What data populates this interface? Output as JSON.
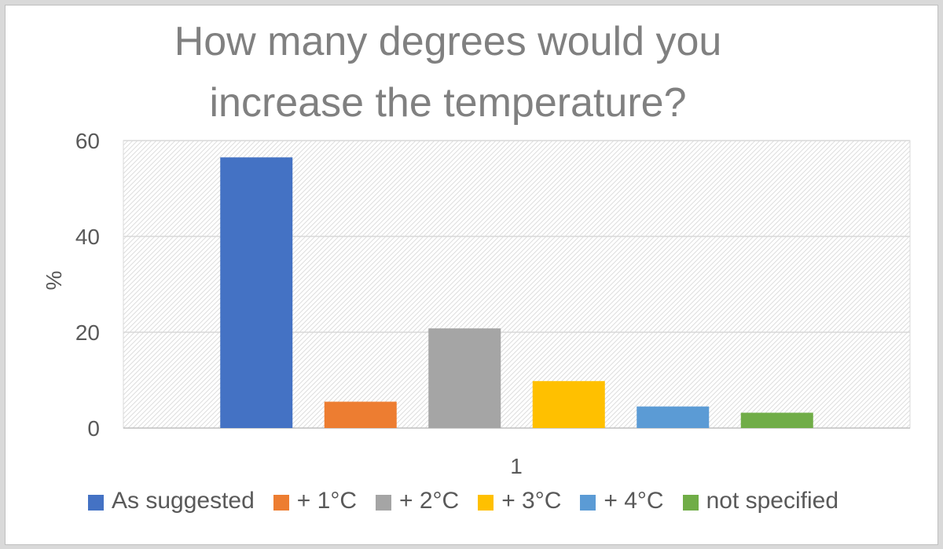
{
  "chart_data": {
    "type": "bar",
    "title": "How many degrees would you increase the temperature?",
    "title_lines": [
      "How many degrees would you",
      "increase the temperature?"
    ],
    "xlabel": "",
    "ylabel": "%",
    "categories": [
      "1"
    ],
    "ylim": [
      0,
      60
    ],
    "yticks": [
      0,
      20,
      40,
      60
    ],
    "grid": true,
    "legend_position": "bottom",
    "series": [
      {
        "name": "As suggested",
        "values": [
          56.5
        ],
        "color": "#4472c4"
      },
      {
        "name": "+ 1°C",
        "values": [
          5.5
        ],
        "color": "#ed7d31"
      },
      {
        "name": "+ 2°C",
        "values": [
          20.8
        ],
        "color": "#a5a5a5"
      },
      {
        "name": "+ 3°C",
        "values": [
          9.8
        ],
        "color": "#ffc000"
      },
      {
        "name": "+ 4°C",
        "values": [
          4.5
        ],
        "color": "#5b9bd5"
      },
      {
        "name": "not specified",
        "values": [
          3.2
        ],
        "color": "#70ad47"
      }
    ]
  }
}
